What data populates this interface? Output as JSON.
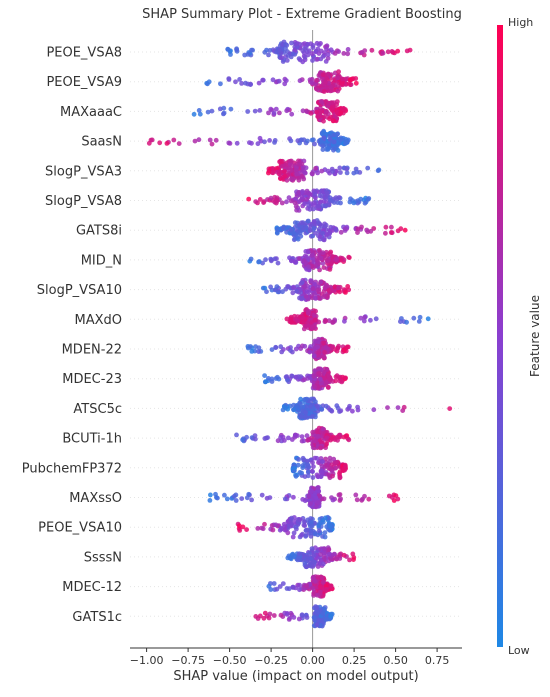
{
  "chart_data": {
    "type": "scatter",
    "subtype": "shap-beeswarm",
    "title": "SHAP Summary Plot - Extreme Gradient Boosting",
    "xlabel": "SHAP value (impact on model output)",
    "ylabel": "",
    "xlim": [
      -1.1,
      0.9
    ],
    "xticks": [
      -1.0,
      -0.75,
      -0.5,
      -0.25,
      0.0,
      0.25,
      0.5,
      0.75
    ],
    "xtick_labels": [
      "−1.00",
      "−0.75",
      "−0.50",
      "−0.25",
      "0.00",
      "0.25",
      "0.50",
      "0.75"
    ],
    "colorbar": {
      "label": "Feature value",
      "high_label": "High",
      "low_label": "Low",
      "low_color": "#1e88e5",
      "high_color": "#ff0052"
    },
    "features": [
      {
        "name": "PEOE_VSA8",
        "min": -0.52,
        "max": 0.6,
        "core": [
          -0.2,
          0.1
        ],
        "low_side": "negative"
      },
      {
        "name": "PEOE_VSA9",
        "min": -0.72,
        "max": 0.27,
        "core": [
          0.02,
          0.17
        ],
        "low_side": "negative"
      },
      {
        "name": "MAXaaaC",
        "min": -0.72,
        "max": 0.2,
        "core": [
          0.03,
          0.15
        ],
        "low_side": "negative"
      },
      {
        "name": "SaasN",
        "min": -1.02,
        "max": 0.22,
        "core": [
          0.05,
          0.16
        ],
        "low_side": "positive"
      },
      {
        "name": "SlogP_VSA3",
        "min": -0.27,
        "max": 0.4,
        "core": [
          -0.2,
          -0.05
        ],
        "low_side": "positive"
      },
      {
        "name": "SlogP_VSA8",
        "min": -0.4,
        "max": 0.35,
        "core": [
          -0.1,
          0.1
        ],
        "low_side": "positive"
      },
      {
        "name": "GATS8i",
        "min": -0.25,
        "max": 0.57,
        "core": [
          -0.12,
          0.1
        ],
        "low_side": "negative"
      },
      {
        "name": "MID_N",
        "min": -0.4,
        "max": 0.23,
        "core": [
          -0.05,
          0.12
        ],
        "low_side": "negative"
      },
      {
        "name": "SlogP_VSA10",
        "min": -0.32,
        "max": 0.22,
        "core": [
          -0.08,
          0.1
        ],
        "low_side": "negative"
      },
      {
        "name": "MAXdO",
        "min": -0.16,
        "max": 0.73,
        "core": [
          -0.06,
          0.02
        ],
        "low_side": "positive"
      },
      {
        "name": "MDEN-22",
        "min": -0.4,
        "max": 0.22,
        "core": [
          0.01,
          0.08
        ],
        "low_side": "negative"
      },
      {
        "name": "MDEC-23",
        "min": -0.3,
        "max": 0.2,
        "core": [
          0.0,
          0.1
        ],
        "low_side": "negative"
      },
      {
        "name": "ATSC5c",
        "min": -0.18,
        "max": 0.83,
        "core": [
          -0.08,
          0.02
        ],
        "low_side": "negative"
      },
      {
        "name": "BCUTi-1h",
        "min": -0.58,
        "max": 0.22,
        "core": [
          0.0,
          0.09
        ],
        "low_side": "negative"
      },
      {
        "name": "PubchemFP372",
        "min": -0.12,
        "max": 0.2,
        "core": [
          -0.11,
          0.18
        ],
        "low_side": "negative"
      },
      {
        "name": "MAXssO",
        "min": -0.65,
        "max": 0.53,
        "core": [
          -0.02,
          0.04
        ],
        "low_side": "negative"
      },
      {
        "name": "PEOE_VSA10",
        "min": -0.45,
        "max": 0.12,
        "core": [
          -0.15,
          0.1
        ],
        "low_side": "positive"
      },
      {
        "name": "SsssN",
        "min": -0.15,
        "max": 0.25,
        "core": [
          -0.05,
          0.1
        ],
        "low_side": "negative"
      },
      {
        "name": "MDEC-12",
        "min": -0.32,
        "max": 0.12,
        "core": [
          0.0,
          0.08
        ],
        "low_side": "negative"
      },
      {
        "name": "GATS1c",
        "min": -0.35,
        "max": 0.12,
        "core": [
          0.01,
          0.08
        ],
        "low_side": "positive"
      }
    ]
  }
}
